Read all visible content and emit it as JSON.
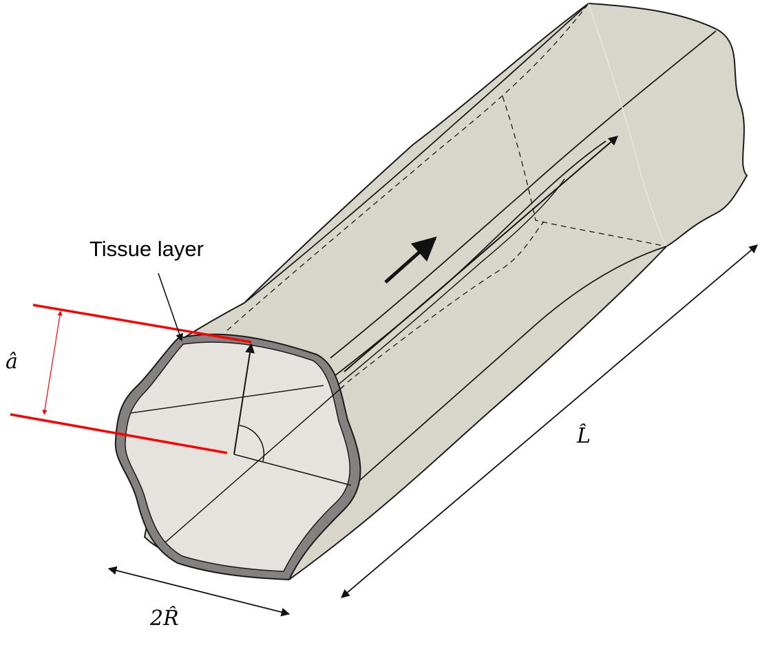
{
  "labels": {
    "tissue_layer": "Tissue layer",
    "a_hat": "â",
    "L_hat": "L̂",
    "two_R_hat": "2R̂"
  },
  "colors": {
    "tube_outer": "#d8d6ca",
    "tube_inner_face": "#e6e3df",
    "tissue_ring": "#848180",
    "outline": "#1a1a1a",
    "annotation_red": "#ff0000",
    "annotation_black": "#111111"
  }
}
